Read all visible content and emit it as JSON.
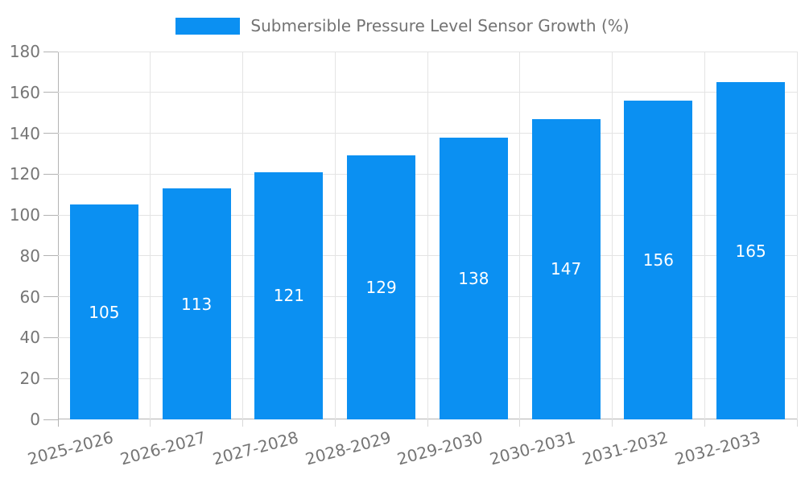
{
  "chart_data": {
    "type": "bar",
    "title": "Submersible Pressure Level Sensor Growth (%)",
    "categories": [
      "2025-2026",
      "2026-2027",
      "2027-2028",
      "2028-2029",
      "2029-2030",
      "2030-2031",
      "2031-2032",
      "2032-2033"
    ],
    "values": [
      105,
      113,
      121,
      129,
      138,
      147,
      156,
      165
    ],
    "xlabel": "",
    "ylabel": "",
    "ylim": [
      0,
      180
    ],
    "ytick_step": 20,
    "grid": true,
    "legend_position": "top",
    "colors": {
      "bar": "#0b90f2",
      "grid": "#e4e4e4",
      "axis": "#b3b3b3",
      "x_tick_mark": "#d9d9d9",
      "tick_text": "#757575",
      "title_text": "#737373",
      "value_label": "#ffffff"
    }
  }
}
